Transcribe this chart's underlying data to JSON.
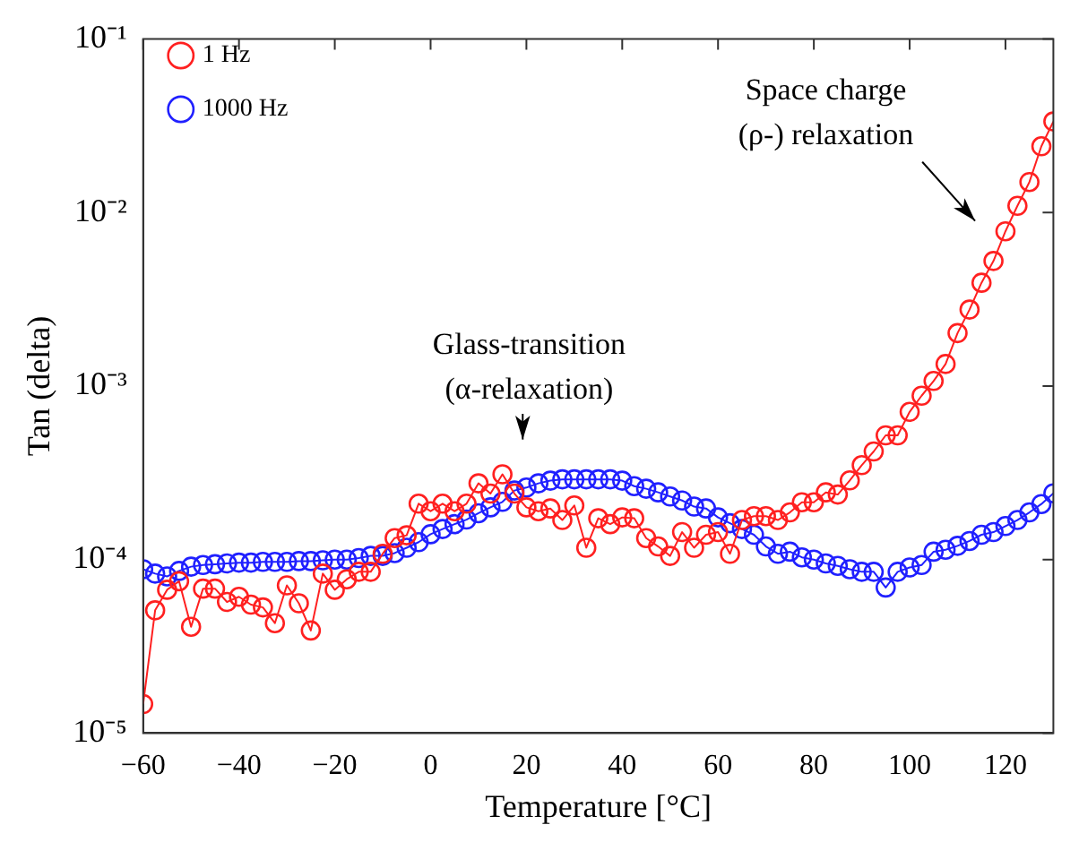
{
  "chart_data": {
    "type": "line",
    "xlabel": "Temperature [°C]",
    "ylabel": "Tan (delta)",
    "x": [
      -60,
      -57.5,
      -55,
      -52.5,
      -50,
      -47.5,
      -45,
      -42.5,
      -40,
      -37.5,
      -35,
      -32.5,
      -30,
      -27.5,
      -25,
      -22.5,
      -20,
      -17.5,
      -15,
      -12.5,
      -10,
      -7.5,
      -5,
      -2.5,
      0,
      2.5,
      5,
      7.5,
      10,
      12.5,
      15,
      17.5,
      20,
      22.5,
      25,
      27.5,
      30,
      32.5,
      35,
      37.5,
      40,
      42.5,
      45,
      47.5,
      50,
      52.5,
      55,
      57.5,
      60,
      62.5,
      65,
      67.5,
      70,
      72.5,
      75,
      77.5,
      80,
      82.5,
      85,
      87.5,
      90,
      92.5,
      95,
      97.5,
      100,
      102.5,
      105,
      107.5,
      110,
      112.5,
      115,
      117.5,
      120,
      122.5,
      125,
      127.5,
      130
    ],
    "series": [
      {
        "name": "1 Hz",
        "color": "#ff2020",
        "values": [
          1.47e-05,
          5.1e-05,
          6.7e-05,
          7.5e-05,
          4.1e-05,
          6.8e-05,
          6.8e-05,
          5.7e-05,
          6.1e-05,
          5.5e-05,
          5.3e-05,
          4.3e-05,
          7.1e-05,
          5.6e-05,
          3.9e-05,
          8.3e-05,
          6.7e-05,
          7.7e-05,
          8.5e-05,
          8.5e-05,
          0.000108,
          0.000133,
          0.000138,
          0.00021,
          0.00019,
          0.00021,
          0.00019,
          0.00021,
          0.000275,
          0.00024,
          0.00031,
          0.00024,
          0.0002,
          0.00019,
          0.000197,
          0.000169,
          0.000205,
          0.000117,
          0.000173,
          0.00016,
          0.000175,
          0.000173,
          0.000133,
          0.000119,
          0.000105,
          0.000144,
          0.000117,
          0.000139,
          0.000144,
          0.000108,
          0.000169,
          0.000178,
          0.000178,
          0.000169,
          0.000187,
          0.000214,
          0.000214,
          0.000244,
          0.000237,
          0.000286,
          0.00035,
          0.00042,
          0.00052,
          0.00052,
          0.00071,
          0.00088,
          0.00107,
          0.00134,
          0.00202,
          0.00276,
          0.00394,
          0.00526,
          0.0078,
          0.01094,
          0.015,
          0.0241,
          0.0335
        ]
      },
      {
        "name": "1000 Hz",
        "color": "#2020ff",
        "values": [
          8.8e-05,
          8.3e-05,
          8e-05,
          8.6e-05,
          9.1e-05,
          9.3e-05,
          9.4e-05,
          9.5e-05,
          9.6e-05,
          9.6e-05,
          9.7e-05,
          9.7e-05,
          9.7e-05,
          9.8e-05,
          9.8e-05,
          9.9e-05,
          0.0001,
          0.0001,
          0.000102,
          0.000105,
          0.000105,
          0.000109,
          0.000117,
          0.000126,
          0.00014,
          0.00015,
          0.00016,
          0.00017,
          0.000185,
          0.0002,
          0.000215,
          0.00025,
          0.00026,
          0.000275,
          0.000285,
          0.00029,
          0.00029,
          0.00029,
          0.00029,
          0.00029,
          0.000285,
          0.000265,
          0.000256,
          0.000244,
          0.000231,
          0.000219,
          0.000202,
          0.000197,
          0.000175,
          0.000162,
          0.00015,
          0.000139,
          0.000119,
          0.000108,
          0.000111,
          0.000103,
          0.0001,
          9.5e-05,
          9.2e-05,
          8.8e-05,
          8.5e-05,
          8.5e-05,
          6.9e-05,
          8.5e-05,
          9e-05,
          9.3e-05,
          0.000111,
          0.000114,
          0.00012,
          0.000128,
          0.000139,
          0.000144,
          0.000156,
          0.000169,
          0.000187,
          0.000209,
          0.000241
        ]
      }
    ],
    "xlim": [
      -60,
      130
    ],
    "xticks": [
      -60,
      -40,
      -20,
      0,
      20,
      40,
      60,
      80,
      100,
      120
    ],
    "log": true,
    "ylim": [
      1e-05,
      0.1
    ],
    "yticks": [
      {
        "value": 1e-05,
        "label": "10⁻⁵"
      },
      {
        "value": 0.0001,
        "label": "10⁻⁴"
      },
      {
        "value": 0.001,
        "label": "10⁻³"
      },
      {
        "value": 0.01,
        "label": "10⁻²"
      },
      {
        "value": 0.1,
        "label": "10⁻¹"
      }
    ],
    "grid": false,
    "legend": "top left",
    "marker": "circle",
    "line_style": "solid",
    "annotations": [
      "Glass-transition\n(α-relaxation)",
      "Space charge\n(ρ-) relaxation"
    ]
  }
}
